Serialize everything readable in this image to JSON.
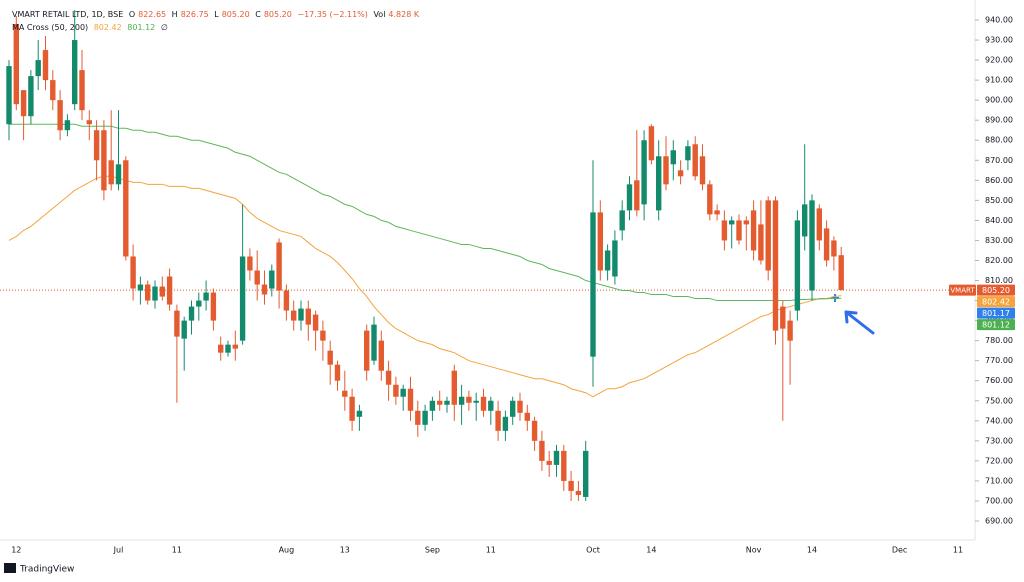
{
  "header": {
    "symbol": "VMART RETAIL LTD, 1D, BSE",
    "open_label": "O",
    "open": "822.65",
    "high_label": "H",
    "high": "826.75",
    "low_label": "L",
    "low": "805.20",
    "close_label": "C",
    "close": "805.20",
    "change": "−17.35 (−2.11%)",
    "volume_label": "Vol",
    "volume": "4.828 K",
    "indicator": "MA Cross (50, 200)",
    "ma_fast": "802.42",
    "ma_slow": "801.12",
    "indicator_flag": "∅"
  },
  "brand": "TradingView",
  "chart_data": {
    "type": "candlestick",
    "symbol_tag": "VMART",
    "up_color": "#138a6c",
    "down_color": "#e35b2f",
    "categories": [
      null,
      "12",
      null,
      null,
      null,
      null,
      null,
      null,
      null,
      null,
      null,
      null,
      null,
      null,
      null,
      "Jul",
      null,
      null,
      null,
      null,
      null,
      null,
      null,
      "11",
      null,
      null,
      null,
      null,
      null,
      null,
      null,
      null,
      null,
      null,
      null,
      null,
      null,
      null,
      "Aug",
      null,
      null,
      null,
      null,
      null,
      null,
      null,
      "13",
      null,
      null,
      null,
      null,
      null,
      null,
      null,
      null,
      null,
      null,
      null,
      "Sep",
      null,
      null,
      null,
      null,
      null,
      null,
      null,
      "11",
      null,
      null,
      null,
      null,
      null,
      null,
      null,
      null,
      null,
      null,
      null,
      null,
      null,
      "Oct",
      null,
      null,
      null,
      null,
      null,
      null,
      null,
      "14",
      null,
      null,
      null,
      null,
      null,
      null,
      null,
      null,
      null,
      null,
      null,
      null,
      null,
      "Nov",
      null,
      null,
      null,
      null,
      null,
      null,
      null,
      "14",
      null,
      null,
      null,
      null,
      null,
      null,
      null,
      null,
      null,
      null,
      null,
      "Dec",
      null,
      null,
      null,
      null,
      null,
      null,
      null,
      "11",
      null,
      null
    ],
    "open": [
      888,
      938,
      905,
      892,
      912,
      925,
      910,
      900,
      885,
      898,
      915,
      890,
      885,
      885,
      870,
      858,
      870,
      822,
      805,
      808,
      800,
      807,
      812,
      795,
      781,
      790,
      797,
      800,
      804,
      778,
      774,
      778,
      780,
      822,
      815,
      808,
      806,
      829,
      805,
      795,
      790,
      796,
      793,
      785,
      775,
      768,
      755,
      752,
      742,
      785,
      770,
      780,
      765,
      758,
      752,
      756,
      745,
      738,
      745,
      750,
      748,
      765,
      748,
      752,
      749,
      752,
      745,
      745,
      735,
      742,
      750,
      744,
      740,
      730,
      720,
      718,
      725,
      710,
      705,
      702,
      772,
      844,
      815,
      812,
      835,
      845,
      860,
      848,
      887,
      845,
      872,
      868,
      865,
      870,
      878,
      872,
      858,
      845,
      840,
      838,
      840,
      840,
      845,
      838,
      850,
      850,
      797,
      790,
      795,
      832,
      805,
      846,
      836,
      830,
      822.65,
      null,
      null,
      null,
      null,
      null,
      null,
      null,
      null,
      null,
      null,
      null,
      null,
      null,
      null,
      null,
      null,
      null,
      null
    ],
    "high": [
      920,
      942,
      905,
      915,
      930,
      932,
      915,
      905,
      893,
      945,
      925,
      895,
      890,
      890,
      895,
      895,
      872,
      828,
      812,
      810,
      810,
      812,
      816,
      798,
      792,
      800,
      804,
      810,
      806,
      782,
      780,
      785,
      848,
      826,
      825,
      815,
      818,
      831,
      808,
      800,
      800,
      800,
      795,
      790,
      780,
      770,
      765,
      756,
      748,
      788,
      792,
      785,
      770,
      762,
      758,
      762,
      750,
      748,
      752,
      755,
      752,
      768,
      758,
      755,
      754,
      756,
      752,
      750,
      745,
      752,
      754,
      748,
      742,
      735,
      725,
      728,
      728,
      715,
      710,
      730,
      870,
      850,
      828,
      835,
      850,
      862,
      885,
      885,
      888,
      880,
      882,
      880,
      870,
      880,
      882,
      878,
      860,
      848,
      845,
      842,
      843,
      842,
      850,
      850,
      852,
      852,
      800,
      795,
      845,
      878,
      853,
      848,
      840,
      832,
      826.75,
      null,
      null,
      null,
      null,
      null,
      null,
      null,
      null,
      null,
      null,
      null,
      null,
      null,
      null,
      null,
      null,
      null,
      null
    ],
    "low": [
      880,
      895,
      880,
      888,
      905,
      905,
      895,
      880,
      882,
      895,
      890,
      880,
      860,
      850,
      855,
      855,
      820,
      800,
      798,
      798,
      796,
      800,
      795,
      749,
      765,
      783,
      790,
      795,
      785,
      770,
      772,
      770,
      778,
      810,
      800,
      798,
      802,
      796,
      790,
      785,
      785,
      780,
      775,
      770,
      758,
      755,
      745,
      735,
      735,
      760,
      768,
      760,
      750,
      748,
      745,
      740,
      732,
      735,
      740,
      745,
      744,
      740,
      738,
      745,
      740,
      742,
      738,
      730,
      730,
      738,
      740,
      735,
      725,
      715,
      712,
      712,
      705,
      700,
      700,
      700,
      757,
      810,
      810,
      808,
      830,
      840,
      842,
      840,
      868,
      840,
      855,
      860,
      858,
      865,
      860,
      855,
      840,
      840,
      825,
      826,
      828,
      825,
      820,
      818,
      810,
      778,
      740,
      758,
      790,
      825,
      800,
      825,
      817,
      815,
      805.2,
      null,
      null,
      null,
      null,
      null,
      null,
      null,
      null,
      null,
      null,
      null,
      null,
      null,
      null,
      null,
      null,
      null,
      null
    ],
    "close": [
      917,
      898,
      892,
      912,
      920,
      910,
      900,
      885,
      890,
      930,
      895,
      888,
      870,
      855,
      858,
      868,
      822,
      806,
      808,
      800,
      807,
      802,
      798,
      782,
      790,
      797,
      800,
      804,
      790,
      774,
      778,
      776,
      822,
      815,
      808,
      803,
      815,
      805,
      795,
      790,
      796,
      788,
      785,
      780,
      768,
      760,
      752,
      740,
      745,
      765,
      788,
      765,
      758,
      752,
      756,
      745,
      738,
      745,
      750,
      748,
      750,
      748,
      752,
      749,
      750,
      745,
      750,
      735,
      742,
      750,
      744,
      740,
      730,
      720,
      718,
      725,
      710,
      705,
      703,
      725,
      844,
      815,
      825,
      830,
      845,
      858,
      845,
      880,
      870,
      872,
      858,
      875,
      862,
      877,
      862,
      858,
      843,
      843,
      830,
      840,
      830,
      838,
      825,
      820,
      815,
      785,
      786,
      780,
      840,
      848,
      850,
      830,
      820,
      822,
      805.2,
      null,
      null,
      null,
      null,
      null,
      null,
      null,
      null,
      null,
      null,
      null,
      null,
      null,
      null,
      null,
      null,
      null,
      null
    ],
    "series": [
      {
        "name": "MA 50",
        "color": "#f5a33d",
        "values": [
          830,
          832,
          835,
          837,
          840,
          843,
          846,
          849,
          852,
          855,
          857,
          859,
          861,
          862,
          862,
          861,
          860,
          859,
          859,
          858,
          858,
          858,
          857,
          857,
          857,
          856,
          856,
          855,
          854,
          853,
          852,
          851,
          848,
          844,
          841,
          839,
          837,
          835,
          834,
          833,
          832,
          829,
          826,
          824,
          822,
          819,
          815,
          811,
          806,
          802,
          797,
          793,
          789,
          786,
          784,
          782,
          780,
          779,
          778,
          776,
          775,
          774,
          772,
          770,
          769,
          768,
          767,
          766,
          765,
          764,
          763,
          762,
          761,
          761,
          760,
          759,
          758,
          756,
          755,
          754,
          752,
          754,
          756,
          756,
          757,
          759,
          760,
          761,
          763,
          765,
          767,
          769,
          771,
          773,
          774,
          776,
          778,
          780,
          782,
          784,
          786,
          788,
          790,
          792,
          793,
          795,
          796,
          797,
          798,
          799,
          800,
          801,
          801,
          802,
          802.42,
          null,
          null,
          null,
          null,
          null,
          null,
          null,
          null,
          null,
          null,
          null,
          null,
          null,
          null,
          null,
          null,
          null,
          null
        ]
      },
      {
        "name": "MA 200",
        "color": "#5cb85c",
        "values": [
          888,
          888,
          888,
          888,
          888,
          888,
          888,
          888,
          888,
          888,
          887,
          887,
          887,
          887,
          887,
          886,
          886,
          885,
          885,
          884,
          884,
          883,
          882,
          882,
          881,
          880,
          880,
          879,
          878,
          877,
          876,
          874,
          873,
          872,
          870,
          868,
          866,
          864,
          863,
          861,
          859,
          857,
          855,
          853,
          852,
          850,
          848,
          847,
          845,
          843,
          842,
          840,
          839,
          837,
          836,
          835,
          834,
          833,
          832,
          831,
          830,
          829,
          828,
          828,
          827,
          826,
          826,
          825,
          824,
          823,
          822,
          820,
          819,
          818,
          816,
          815,
          814,
          813,
          812,
          810,
          809,
          808,
          807,
          806,
          805,
          805,
          804,
          804,
          803,
          803,
          803,
          802,
          802,
          802,
          801,
          801,
          801,
          800,
          800,
          800,
          800,
          800,
          800,
          800,
          800,
          800,
          800,
          800,
          800.5,
          800.5,
          800.7,
          800.8,
          800.9,
          801,
          801.12,
          null,
          null,
          null,
          null,
          null,
          null,
          null,
          null,
          null,
          null,
          null,
          null,
          null,
          null,
          null,
          null,
          null,
          null
        ]
      }
    ],
    "price_labels": [
      {
        "value": 805.2,
        "label": "805.20",
        "color": "#e35b2f"
      },
      {
        "value": 802.42,
        "label": "802.42",
        "color": "#f5a33d"
      },
      {
        "value": 801.17,
        "label": "801.17",
        "color": "#2f80ed"
      },
      {
        "value": 801.12,
        "label": "801.12",
        "color": "#4caf50"
      }
    ],
    "ylim": [
      686,
      942
    ],
    "yticks": [
      {
        "value": 690,
        "label": "690.00"
      },
      {
        "value": 700,
        "label": "700.00"
      },
      {
        "value": 710,
        "label": "710.00"
      },
      {
        "value": 720,
        "label": "720.00"
      },
      {
        "value": 730,
        "label": "730.00"
      },
      {
        "value": 740,
        "label": "740.00"
      },
      {
        "value": 750,
        "label": "750.00"
      },
      {
        "value": 760,
        "label": "760.00"
      },
      {
        "value": 770,
        "label": "770.00"
      },
      {
        "value": 780,
        "label": "780.00"
      },
      {
        "value": 790,
        "label": "790.00"
      },
      {
        "value": 800,
        "label": "800.00"
      },
      {
        "value": 810,
        "label": "810.00"
      },
      {
        "value": 820,
        "label": "820.00"
      },
      {
        "value": 830,
        "label": "830.00"
      },
      {
        "value": 840,
        "label": "840.00"
      },
      {
        "value": 850,
        "label": "850.00"
      },
      {
        "value": 860,
        "label": "860.00"
      },
      {
        "value": 870,
        "label": "870.00"
      },
      {
        "value": 880,
        "label": "880.00"
      },
      {
        "value": 890,
        "label": "890.00"
      },
      {
        "value": 900,
        "label": "900.00"
      },
      {
        "value": 910,
        "label": "910.00"
      },
      {
        "value": 920,
        "label": "920.00"
      },
      {
        "value": 930,
        "label": "930.00"
      },
      {
        "value": 940,
        "label": "940.00"
      }
    ],
    "grid": false
  }
}
